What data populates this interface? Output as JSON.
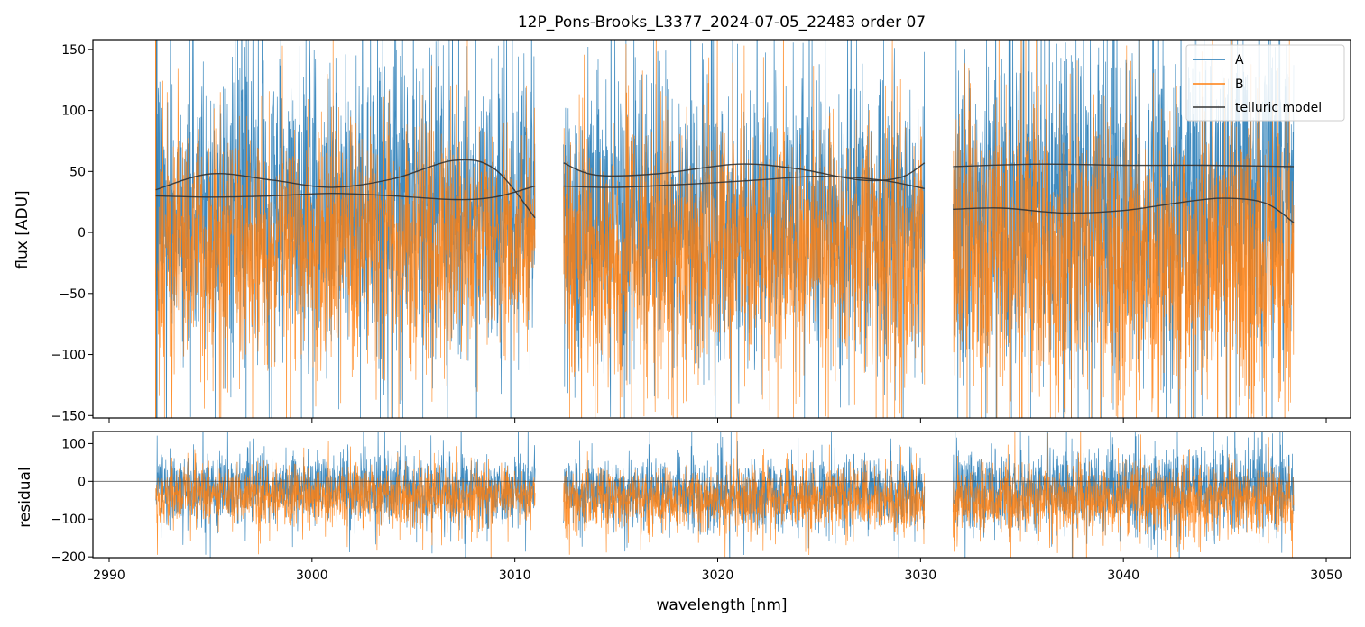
{
  "chart_data": [
    {
      "type": "line",
      "title": "12P_Pons-Brooks_L3377_2024-07-05_22483  order 07",
      "ylabel": "flux [ADU]",
      "xlim": [
        2989.2,
        3051.2
      ],
      "ylim": [
        -152,
        158
      ],
      "xticks": [
        2990,
        3000,
        3010,
        3020,
        3030,
        3040,
        3050
      ],
      "yticks": [
        -150,
        -100,
        -50,
        0,
        50,
        100,
        150
      ],
      "yticklabels": [
        "−150",
        "−100",
        "−50",
        "0",
        "50",
        "100",
        "150"
      ],
      "legend": {
        "placement": "top-right",
        "entries": [
          "A",
          "B",
          "telluric model"
        ]
      },
      "segments": [
        [
          2992.3,
          3011.0
        ],
        [
          3012.4,
          3030.2
        ],
        [
          3031.6,
          3048.4
        ]
      ],
      "series": [
        {
          "name": "A",
          "color": "#1f77b4",
          "description_values": {
            "segment_means": [
              20,
              10,
              25
            ],
            "segment_spread_std": [
              60,
              58,
              70
            ]
          }
        },
        {
          "name": "B",
          "color": "#ff7f0e",
          "description_values": {
            "segment_means": [
              -10,
              -15,
              -20
            ],
            "segment_spread_std": [
              48,
              50,
              60
            ]
          }
        }
      ],
      "telluric_model": {
        "name": "telluric model",
        "color": "#333333",
        "curves": [
          {
            "x": [
              2992.3,
              2995.0,
              2998.0,
              3001.0,
              3004.0,
              3007.0,
              3009.0,
              3011.0
            ],
            "y": [
              35,
              48,
              43,
              37,
              44,
              59,
              52,
              12
            ]
          },
          {
            "x": [
              2992.3,
              2995.0,
              2998.0,
              3001.0,
              3004.0,
              3007.0,
              3009.0,
              3011.0
            ],
            "y": [
              30,
              29,
              30,
              32,
              30,
              27,
              29,
              38
            ]
          },
          {
            "x": [
              3012.4,
              3014.0,
              3017.0,
              3021.0,
              3024.0,
              3027.0,
              3029.0,
              3030.2
            ],
            "y": [
              57,
              47,
              48,
              56,
              52,
              43,
              45,
              57
            ]
          },
          {
            "x": [
              3012.4,
              3015.0,
              3019.0,
              3022.0,
              3025.0,
              3028.0,
              3030.2
            ],
            "y": [
              38,
              37,
              40,
              43,
              46,
              43,
              36
            ]
          },
          {
            "x": [
              3031.6,
              3036.0,
              3040.0,
              3044.0,
              3048.4
            ],
            "y": [
              54,
              56,
              55,
              55,
              54
            ]
          },
          {
            "x": [
              3031.6,
              3034.0,
              3037.0,
              3040.0,
              3043.0,
              3045.0,
              3047.0,
              3048.4
            ],
            "y": [
              19,
              20,
              16,
              18,
              25,
              28,
              24,
              8
            ]
          }
        ]
      }
    },
    {
      "type": "line",
      "xlabel": "wavelength [nm]",
      "ylabel": "residual",
      "xlim": [
        2989.2,
        3051.2
      ],
      "ylim": [
        -202,
        132
      ],
      "xticks": [
        2990,
        3000,
        3010,
        3020,
        3030,
        3040,
        3050
      ],
      "xticklabels": [
        "2990",
        "3000",
        "3010",
        "3020",
        "3030",
        "3040",
        "3050"
      ],
      "yticks": [
        -200,
        -100,
        0,
        100
      ],
      "yticklabels": [
        "−200",
        "−100",
        "0",
        "100"
      ],
      "zero_line": true,
      "series": [
        {
          "name": "A",
          "color": "#1f77b4",
          "description_values": {
            "segment_means": [
              -20,
              -30,
              -20
            ],
            "segment_spread_std": [
              45,
              45,
              55
            ]
          }
        },
        {
          "name": "B",
          "color": "#ff7f0e",
          "description_values": {
            "segment_means": [
              -40,
              -50,
              -50
            ],
            "segment_spread_std": [
              38,
              40,
              45
            ]
          }
        }
      ]
    }
  ]
}
